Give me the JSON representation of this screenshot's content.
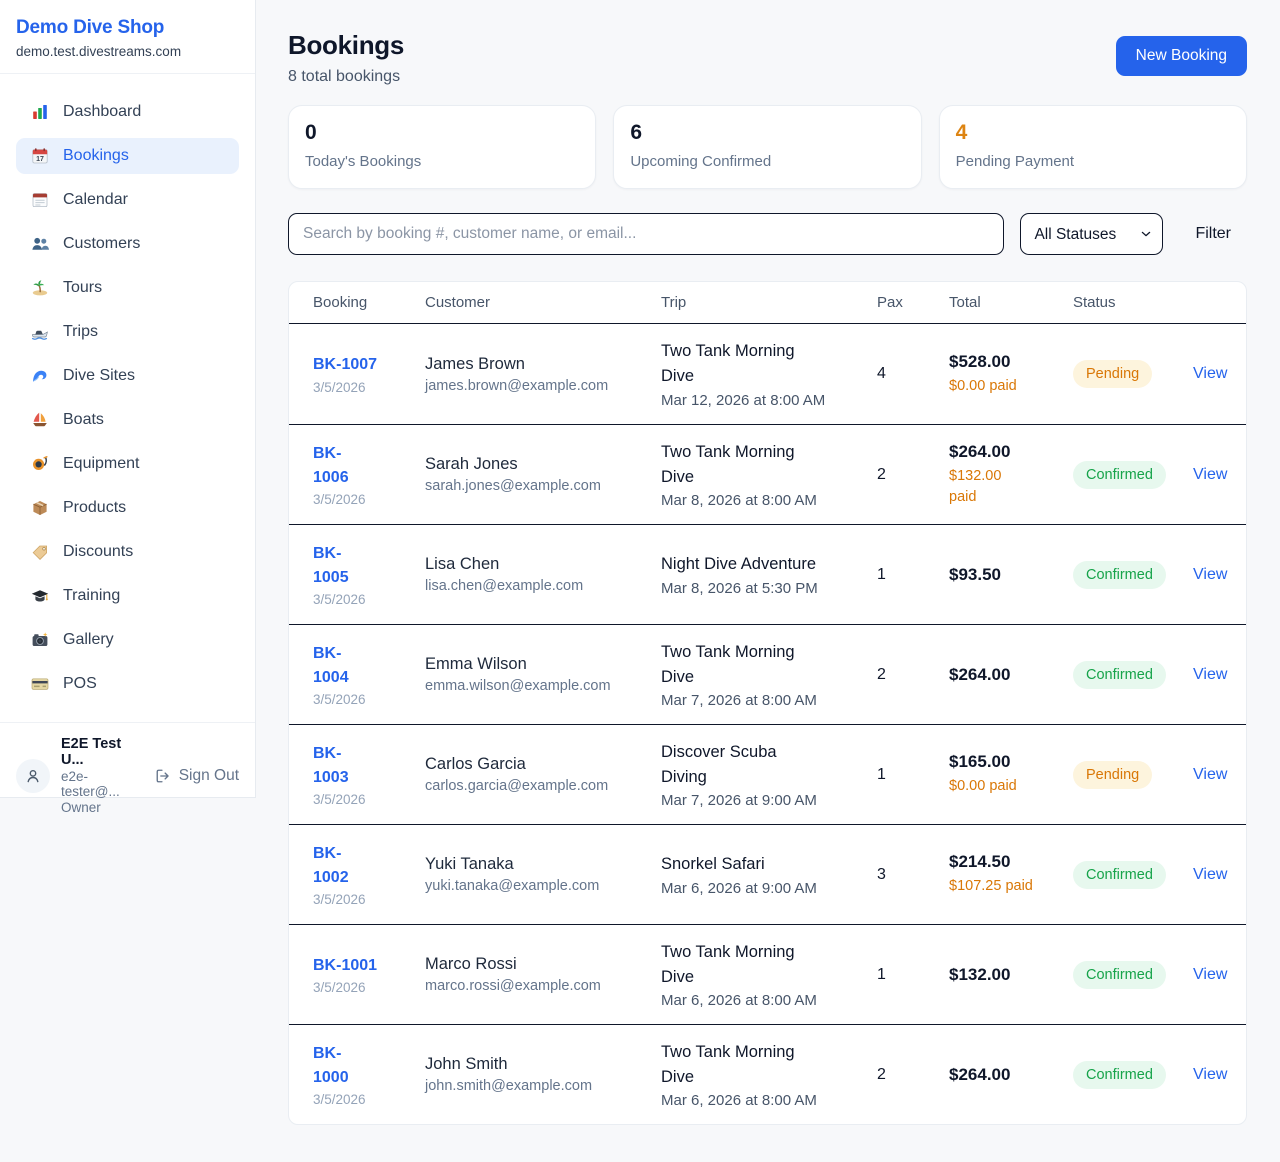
{
  "sidebar": {
    "brand": {
      "name": "Demo Dive Shop",
      "domain": "demo.test.divestreams.com"
    },
    "items": [
      {
        "label": "Dashboard",
        "icon": "dashboard",
        "active": false
      },
      {
        "label": "Bookings",
        "icon": "bookings",
        "active": true
      },
      {
        "label": "Calendar",
        "icon": "calendar",
        "active": false
      },
      {
        "label": "Customers",
        "icon": "customers",
        "active": false
      },
      {
        "label": "Tours",
        "icon": "tours",
        "active": false
      },
      {
        "label": "Trips",
        "icon": "trips",
        "active": false
      },
      {
        "label": "Dive Sites",
        "icon": "dive-sites",
        "active": false
      },
      {
        "label": "Boats",
        "icon": "boats",
        "active": false
      },
      {
        "label": "Equipment",
        "icon": "equipment",
        "active": false
      },
      {
        "label": "Products",
        "icon": "products",
        "active": false
      },
      {
        "label": "Discounts",
        "icon": "discounts",
        "active": false
      },
      {
        "label": "Training",
        "icon": "training",
        "active": false
      },
      {
        "label": "Gallery",
        "icon": "gallery",
        "active": false
      },
      {
        "label": "POS",
        "icon": "pos",
        "active": false
      }
    ],
    "user": {
      "name": "E2E Test U...",
      "email": "e2e-tester@...",
      "role": "Owner",
      "sign_out_label": "Sign Out"
    }
  },
  "header": {
    "title": "Bookings",
    "subtitle": "8 total bookings",
    "new_booking_label": "New Booking"
  },
  "stats": [
    {
      "value": "0",
      "label": "Today's Bookings",
      "color": "#0f172a"
    },
    {
      "value": "6",
      "label": "Upcoming Confirmed",
      "color": "#0f172a"
    },
    {
      "value": "4",
      "label": "Pending Payment",
      "color": "#dd8412"
    }
  ],
  "filters": {
    "search_placeholder": "Search by booking #, customer name, or email...",
    "status_selected": "All Statuses",
    "filter_label": "Filter"
  },
  "table": {
    "columns": [
      "Booking",
      "Customer",
      "Trip",
      "Pax",
      "Total",
      "Status"
    ],
    "view_label": "View",
    "rows": [
      {
        "booking_id": "BK-1007",
        "date": "3/5/2026",
        "customer": "James Brown",
        "email": "james.brown@example.com",
        "trip": "Two Tank Morning\nDive",
        "trip_datetime": "Mar 12, 2026 at 8:00 AM",
        "pax": "4",
        "total": "$528.00",
        "paid": "$0.00 paid",
        "status": "Pending"
      },
      {
        "booking_id": "BK-\n1006",
        "date": "3/5/2026",
        "customer": "Sarah Jones",
        "email": "sarah.jones@example.com",
        "trip": "Two Tank Morning\nDive",
        "trip_datetime": "Mar 8, 2026 at 8:00 AM",
        "pax": "2",
        "total": "$264.00",
        "paid": "$132.00\npaid",
        "status": "Confirmed"
      },
      {
        "booking_id": "BK-\n1005",
        "date": "3/5/2026",
        "customer": "Lisa Chen",
        "email": "lisa.chen@example.com",
        "trip": "Night Dive Adventure",
        "trip_datetime": "Mar 8, 2026 at 5:30 PM",
        "pax": "1",
        "total": "$93.50",
        "paid": null,
        "status": "Confirmed"
      },
      {
        "booking_id": "BK-\n1004",
        "date": "3/5/2026",
        "customer": "Emma Wilson",
        "email": "emma.wilson@example.com",
        "trip": "Two Tank Morning\nDive",
        "trip_datetime": "Mar 7, 2026 at 8:00 AM",
        "pax": "2",
        "total": "$264.00",
        "paid": null,
        "status": "Confirmed"
      },
      {
        "booking_id": "BK-\n1003",
        "date": "3/5/2026",
        "customer": "Carlos Garcia",
        "email": "carlos.garcia@example.com",
        "trip": "Discover Scuba\nDiving",
        "trip_datetime": "Mar 7, 2026 at 9:00 AM",
        "pax": "1",
        "total": "$165.00",
        "paid": "$0.00 paid",
        "status": "Pending"
      },
      {
        "booking_id": "BK-\n1002",
        "date": "3/5/2026",
        "customer": "Yuki Tanaka",
        "email": "yuki.tanaka@example.com",
        "trip": "Snorkel Safari",
        "trip_datetime": "Mar 6, 2026 at 9:00 AM",
        "pax": "3",
        "total": "$214.50",
        "paid": "$107.25 paid",
        "status": "Confirmed"
      },
      {
        "booking_id": "BK-1001",
        "date": "3/5/2026",
        "customer": "Marco Rossi",
        "email": "marco.rossi@example.com",
        "trip": "Two Tank Morning\nDive",
        "trip_datetime": "Mar 6, 2026 at 8:00 AM",
        "pax": "1",
        "total": "$132.00",
        "paid": null,
        "status": "Confirmed"
      },
      {
        "booking_id": "BK-\n1000",
        "date": "3/5/2026",
        "customer": "John Smith",
        "email": "john.smith@example.com",
        "trip": "Two Tank Morning\nDive",
        "trip_datetime": "Mar 6, 2026 at 8:00 AM",
        "pax": "2",
        "total": "$264.00",
        "paid": null,
        "status": "Confirmed"
      }
    ]
  },
  "colors": {
    "accent_blue": "#2563eb",
    "pending_text": "#d97706",
    "pending_bg": "#fdf4dd",
    "confirmed_text": "#16a34a",
    "confirmed_bg": "#e7f8ee"
  }
}
